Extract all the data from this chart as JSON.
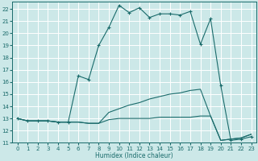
{
  "title": "",
  "xlabel": "Humidex (Indice chaleur)",
  "xlim": [
    -0.5,
    23.5
  ],
  "ylim": [
    11,
    22.6
  ],
  "yticks": [
    11,
    12,
    13,
    14,
    15,
    16,
    17,
    18,
    19,
    20,
    21,
    22
  ],
  "xticks": [
    0,
    1,
    2,
    3,
    4,
    5,
    6,
    7,
    8,
    9,
    10,
    11,
    12,
    13,
    14,
    15,
    16,
    17,
    18,
    19,
    20,
    21,
    22,
    23
  ],
  "bg_color": "#cce8e8",
  "grid_color": "#ffffff",
  "line_color": "#1a6b6b",
  "series": [
    {
      "x": [
        0,
        1,
        2,
        3,
        4,
        5,
        6,
        7,
        8,
        9,
        10,
        11,
        12,
        13,
        14,
        15,
        16,
        17,
        18,
        19,
        20,
        21,
        22,
        23
      ],
      "y": [
        13.0,
        12.8,
        12.8,
        12.8,
        12.7,
        12.7,
        16.5,
        16.2,
        19.0,
        20.5,
        22.3,
        21.7,
        22.1,
        21.3,
        21.6,
        21.6,
        21.5,
        21.8,
        19.1,
        21.2,
        15.7,
        11.2,
        11.3,
        11.5
      ],
      "marker": "+"
    },
    {
      "x": [
        0,
        1,
        2,
        3,
        4,
        5,
        6,
        7,
        8,
        9,
        10,
        11,
        12,
        13,
        14,
        15,
        16,
        17,
        18,
        19,
        20,
        21,
        22,
        23
      ],
      "y": [
        13.0,
        12.8,
        12.8,
        12.8,
        12.7,
        12.7,
        12.7,
        12.6,
        12.6,
        13.5,
        13.8,
        14.1,
        14.3,
        14.6,
        14.8,
        15.0,
        15.1,
        15.3,
        15.4,
        13.2,
        11.2,
        11.3,
        11.4,
        11.7
      ],
      "marker": null
    },
    {
      "x": [
        0,
        1,
        2,
        3,
        4,
        5,
        6,
        7,
        8,
        9,
        10,
        11,
        12,
        13,
        14,
        15,
        16,
        17,
        18,
        19,
        20,
        21,
        22,
        23
      ],
      "y": [
        13.0,
        12.8,
        12.8,
        12.8,
        12.7,
        12.7,
        12.7,
        12.6,
        12.6,
        12.9,
        13.0,
        13.0,
        13.0,
        13.0,
        13.1,
        13.1,
        13.1,
        13.1,
        13.2,
        13.2,
        11.2,
        11.3,
        11.4,
        11.7
      ],
      "marker": null
    }
  ]
}
